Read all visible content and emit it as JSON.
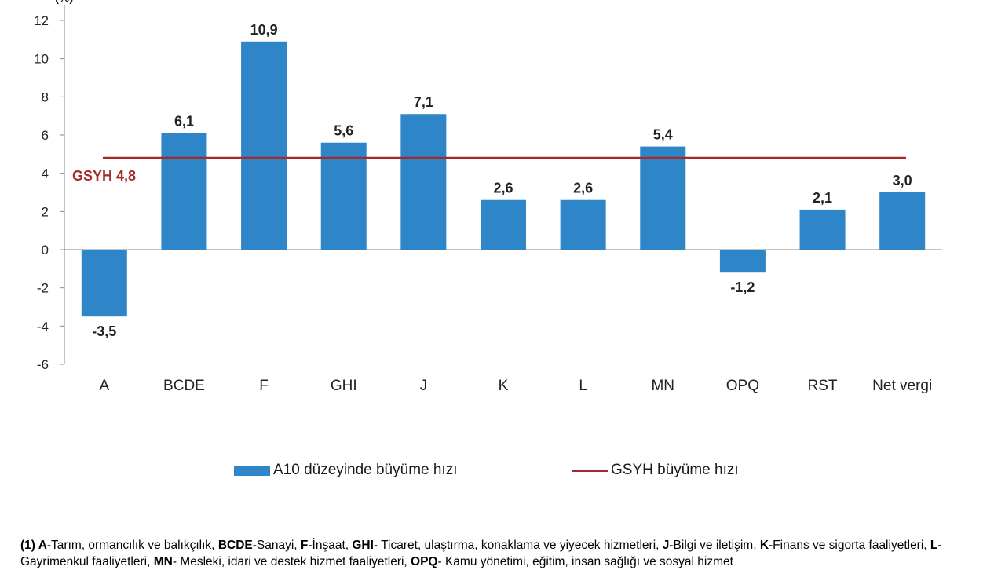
{
  "chart_data": {
    "type": "bar",
    "ylabel": "(%)",
    "ylim": [
      -6,
      12
    ],
    "yticks": [
      12,
      10,
      8,
      6,
      4,
      2,
      0,
      -2,
      -4,
      -6
    ],
    "categories": [
      "A",
      "BCDE",
      "F",
      "GHI",
      "J",
      "K",
      "L",
      "MN",
      "OPQ",
      "RST",
      "Net vergi"
    ],
    "series": [
      {
        "name": "A10 düzeyinde büyüme hızı",
        "color": "#2e86c9",
        "values": [
          -3.5,
          6.1,
          10.9,
          5.6,
          7.1,
          2.6,
          2.6,
          5.4,
          -1.2,
          2.1,
          3.0
        ],
        "labels": [
          "-3,5",
          "6,1",
          "10,9",
          "5,6",
          "7,1",
          "2,6",
          "2,6",
          "5,4",
          "-1,2",
          "2,1",
          "3,0"
        ]
      }
    ],
    "reference_line": {
      "name": "GSYH büyüme hızı",
      "value": 4.8,
      "label": "GSYH 4,8",
      "color": "#a52a2a"
    },
    "grid": false,
    "legend_position": "bottom"
  },
  "footnote": {
    "lead": "(1)",
    "parts": [
      {
        "b": "A",
        "t": "-Tarım, ormancılık ve balıkçılık, "
      },
      {
        "b": "BCDE",
        "t": "-Sanayi, "
      },
      {
        "b": "F",
        "t": "-İnşaat, "
      },
      {
        "b": "GHI",
        "t": "- Ticaret, ulaştırma, konaklama ve yiyecek hizmetleri, "
      },
      {
        "b": "J",
        "t": "-Bilgi ve iletişim, "
      },
      {
        "b": "K",
        "t": "-Finans ve sigorta faaliyetleri, "
      },
      {
        "b": "L",
        "t": "-Gayrimenkul faaliyetleri, "
      },
      {
        "b": "MN",
        "t": "- Mesleki, idari ve destek hizmet faaliyetleri, "
      },
      {
        "b": "OPQ",
        "t": "- Kamu yönetimi, eğitim, insan sağlığı ve sosyal hizmet"
      }
    ]
  }
}
